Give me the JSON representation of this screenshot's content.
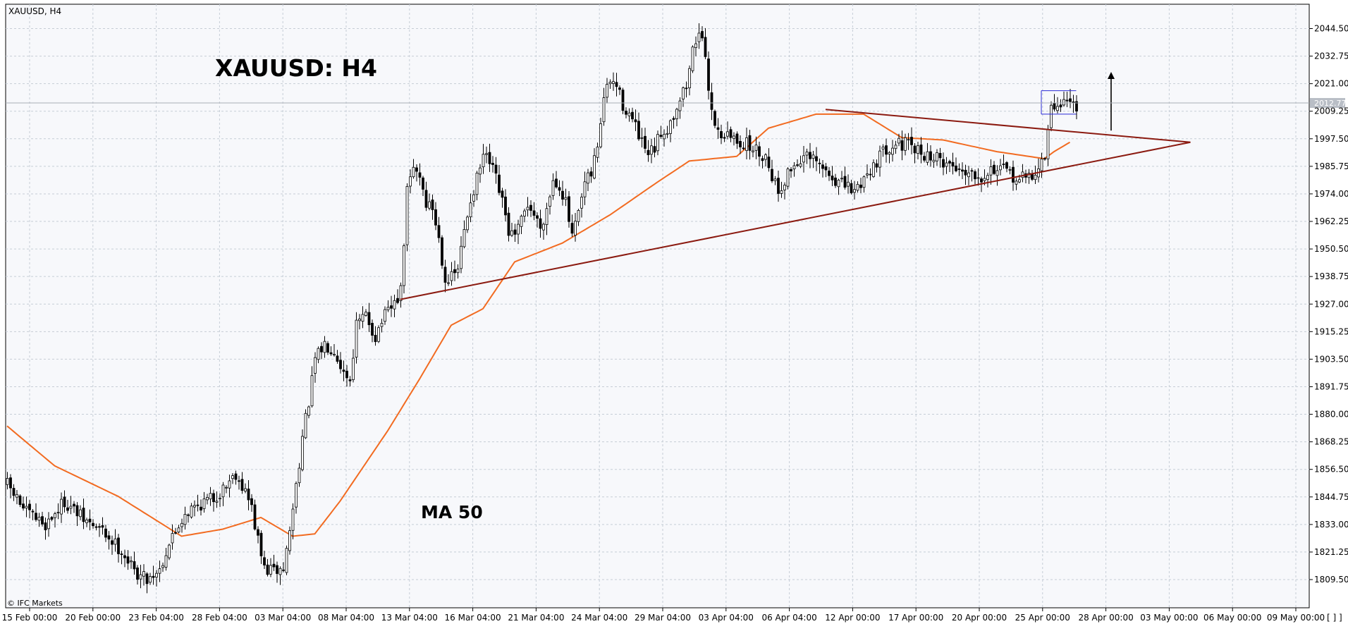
{
  "header": {
    "symbol": "XAUUSD, H4",
    "title": "XAUUSD: H4",
    "ma_label": "MA 50",
    "copyright": "© IFC Markets",
    "current_price": "2012.77",
    "corner_marks": "[ ] ]"
  },
  "colors": {
    "background": "#ffffff",
    "plot_bg": "#f7f8fb",
    "grid": "#c6cdd6",
    "candle": "#000000",
    "ma": "#f26b21",
    "trendline": "#8b1a10",
    "box": "#2a2ad6",
    "price_tag": "#b9bec6"
  },
  "chart_data": {
    "type": "candlestick",
    "instrument": "XAUUSD",
    "timeframe": "H4",
    "y_ticks": [
      "2044.50",
      "2032.75",
      "2021.00",
      "2009.25",
      "1997.50",
      "1985.75",
      "1974.00",
      "1962.25",
      "1950.50",
      "1938.75",
      "1927.00",
      "1915.25",
      "1903.50",
      "1891.75",
      "1880.00",
      "1868.25",
      "1856.50",
      "1844.75",
      "1833.00",
      "1821.25",
      "1809.50"
    ],
    "ylim": [
      1806,
      2052
    ],
    "x_ticks": [
      "15 Feb 00:00",
      "20 Feb 00:00",
      "23 Feb 04:00",
      "28 Feb 04:00",
      "03 Mar 04:00",
      "08 Mar 04:00",
      "13 Mar 04:00",
      "16 Mar 04:00",
      "21 Mar 04:00",
      "24 Mar 04:00",
      "29 Mar 04:00",
      "03 Apr 04:00",
      "06 Apr 04:00",
      "12 Apr 00:00",
      "17 Apr 00:00",
      "20 Apr 00:00",
      "25 Apr 00:00",
      "28 Apr 00:00",
      "03 May 00:00",
      "06 May 00:00",
      "09 May 00:00"
    ],
    "candle_count": 225,
    "price_anchors": [
      [
        0,
        1850
      ],
      [
        6,
        1838
      ],
      [
        12,
        1833
      ],
      [
        18,
        1843
      ],
      [
        24,
        1835
      ],
      [
        30,
        1830
      ],
      [
        36,
        1822
      ],
      [
        40,
        1813
      ],
      [
        44,
        1810
      ],
      [
        48,
        1814
      ],
      [
        51,
        1825
      ],
      [
        56,
        1838
      ],
      [
        61,
        1842
      ],
      [
        66,
        1845
      ],
      [
        70,
        1852
      ],
      [
        72,
        1855
      ],
      [
        75,
        1847
      ],
      [
        77,
        1840
      ],
      [
        79,
        1826
      ],
      [
        81,
        1814
      ],
      [
        84,
        1813
      ],
      [
        87,
        1814
      ],
      [
        89,
        1830
      ],
      [
        91,
        1850
      ],
      [
        93,
        1870
      ],
      [
        95,
        1885
      ],
      [
        97,
        1903
      ],
      [
        100,
        1910
      ],
      [
        103,
        1908
      ],
      [
        106,
        1898
      ],
      [
        108,
        1895
      ],
      [
        110,
        1918
      ],
      [
        113,
        1922
      ],
      [
        116,
        1913
      ],
      [
        118,
        1920
      ],
      [
        121,
        1925
      ],
      [
        124,
        1932
      ],
      [
        126,
        1975
      ],
      [
        128,
        1985
      ],
      [
        130,
        1982
      ],
      [
        132,
        1970
      ],
      [
        134,
        1968
      ],
      [
        136,
        1955
      ],
      [
        138,
        1938
      ],
      [
        140,
        1938
      ],
      [
        142,
        1942
      ],
      [
        144,
        1958
      ],
      [
        146,
        1972
      ],
      [
        148,
        1980
      ],
      [
        150,
        1990
      ],
      [
        152,
        1987
      ],
      [
        154,
        1980
      ],
      [
        156,
        1970
      ],
      [
        158,
        1958
      ],
      [
        160,
        1955
      ],
      [
        162,
        1962
      ],
      [
        164,
        1970
      ],
      [
        166,
        1965
      ],
      [
        168,
        1960
      ],
      [
        170,
        1968
      ],
      [
        172,
        1980
      ],
      [
        174,
        1978
      ],
      [
        176,
        1970
      ],
      [
        178,
        1955
      ],
      [
        180,
        1965
      ],
      [
        182,
        1978
      ],
      [
        184,
        1982
      ],
      [
        186,
        1995
      ],
      [
        188,
        2015
      ],
      [
        190,
        2022
      ],
      [
        192,
        2020
      ],
      [
        194,
        2012
      ],
      [
        196,
        2008
      ],
      [
        198,
        2002
      ],
      [
        200,
        1995
      ],
      [
        202,
        1990
      ],
      [
        204,
        1993
      ],
      [
        206,
        2000
      ],
      [
        208,
        2002
      ],
      [
        210,
        2008
      ],
      [
        212,
        2015
      ],
      [
        214,
        2020
      ],
      [
        216,
        2035
      ],
      [
        218,
        2045
      ],
      [
        220,
        2030
      ],
      [
        222,
        2010
      ],
      [
        224,
        2000
      ]
    ],
    "tail_anchors": [
      [
        0,
        2000
      ],
      [
        8,
        1995
      ],
      [
        14,
        1990
      ],
      [
        18,
        1975
      ],
      [
        22,
        1985
      ],
      [
        26,
        1990
      ],
      [
        30,
        1987
      ],
      [
        34,
        1982
      ],
      [
        38,
        1978
      ],
      [
        42,
        1975
      ],
      [
        46,
        1983
      ],
      [
        50,
        1990
      ],
      [
        54,
        1996
      ],
      [
        58,
        1995
      ],
      [
        62,
        1992
      ],
      [
        66,
        1990
      ],
      [
        70,
        1988
      ],
      [
        74,
        1985
      ],
      [
        78,
        1984
      ],
      [
        82,
        1982
      ],
      [
        86,
        1985
      ],
      [
        90,
        1983
      ],
      [
        94,
        1980
      ],
      [
        98,
        1982
      ],
      [
        100,
        1985
      ],
      [
        102,
        1990
      ],
      [
        104,
        2010
      ],
      [
        108,
        2014
      ],
      [
        112,
        2012
      ]
    ],
    "ma50_anchors": [
      [
        0,
        1875
      ],
      [
        15,
        1858
      ],
      [
        35,
        1845
      ],
      [
        55,
        1828
      ],
      [
        68,
        1831
      ],
      [
        80,
        1836
      ],
      [
        90,
        1828
      ],
      [
        97,
        1829
      ],
      [
        105,
        1843
      ],
      [
        120,
        1873
      ],
      [
        130,
        1895
      ],
      [
        140,
        1918
      ],
      [
        150,
        1925
      ],
      [
        160,
        1945
      ],
      [
        175,
        1953
      ],
      [
        190,
        1965
      ],
      [
        205,
        1979
      ],
      [
        215,
        1988
      ],
      [
        230,
        1990
      ],
      [
        240,
        2002
      ],
      [
        255,
        2008
      ],
      [
        270,
        2008
      ],
      [
        282,
        1998
      ],
      [
        295,
        1997
      ],
      [
        312,
        1992
      ],
      [
        322,
        1990
      ],
      [
        327,
        1989
      ],
      [
        330,
        1992
      ],
      [
        335,
        1996
      ]
    ],
    "trendlines": [
      {
        "name": "support",
        "from": [
          124,
          1929
        ],
        "to": [
          373,
          1996
        ]
      },
      {
        "name": "resistance",
        "from": [
          258,
          2010
        ],
        "to": [
          373,
          1996
        ]
      }
    ],
    "consolidation_box": {
      "top": 2018,
      "bottom": 2008,
      "from": 326,
      "to": 337
    },
    "arrow": {
      "x": 348,
      "from": 2001,
      "to": 2026
    }
  }
}
